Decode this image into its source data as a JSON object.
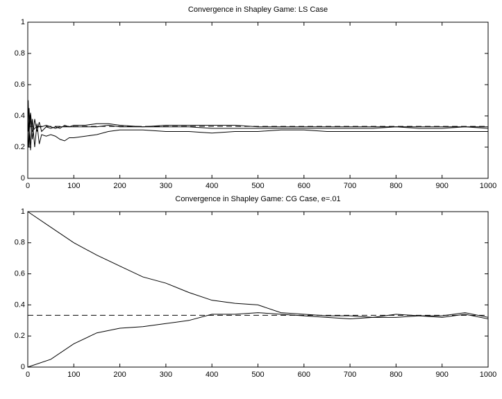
{
  "chart_data": [
    {
      "type": "line",
      "title": "Convergence in Shapley Game: LS Case",
      "x": [
        1,
        3,
        6,
        10,
        15,
        20,
        25,
        30,
        40,
        50,
        60,
        70,
        80,
        90,
        100,
        125,
        150,
        175,
        200,
        250,
        300,
        350,
        400,
        450,
        500,
        550,
        600,
        650,
        700,
        750,
        800,
        850,
        900,
        950,
        1000
      ],
      "series": [
        {
          "color": "#000000",
          "values": [
            0.5,
            0.2,
            0.4,
            0.25,
            0.38,
            0.3,
            0.36,
            0.3,
            0.33,
            0.32,
            0.33,
            0.32,
            0.34,
            0.33,
            0.34,
            0.34,
            0.35,
            0.35,
            0.34,
            0.33,
            0.34,
            0.34,
            0.34,
            0.34,
            0.33,
            0.33,
            0.33,
            0.33,
            0.33,
            0.33,
            0.33,
            0.33,
            0.33,
            0.33,
            0.33
          ]
        },
        {
          "color": "#000000",
          "values": [
            0.3,
            0.45,
            0.18,
            0.38,
            0.2,
            0.35,
            0.22,
            0.28,
            0.27,
            0.28,
            0.27,
            0.25,
            0.24,
            0.26,
            0.26,
            0.27,
            0.28,
            0.3,
            0.31,
            0.31,
            0.3,
            0.3,
            0.29,
            0.3,
            0.3,
            0.31,
            0.31,
            0.3,
            0.3,
            0.3,
            0.3,
            0.3,
            0.3,
            0.3,
            0.3
          ]
        },
        {
          "color": "#000000",
          "values": [
            0.2,
            0.35,
            0.42,
            0.3,
            0.32,
            0.33,
            0.33,
            0.33,
            0.34,
            0.33,
            0.32,
            0.33,
            0.33,
            0.33,
            0.33,
            0.33,
            0.33,
            0.34,
            0.33,
            0.33,
            0.33,
            0.33,
            0.32,
            0.32,
            0.32,
            0.32,
            0.32,
            0.32,
            0.32,
            0.32,
            0.33,
            0.32,
            0.32,
            0.33,
            0.32
          ]
        }
      ],
      "hline": {
        "value": 0.333,
        "color": "#000000",
        "dashed": true
      },
      "xlim": [
        0,
        1000
      ],
      "xticks": [
        0,
        100,
        200,
        300,
        400,
        500,
        600,
        700,
        800,
        900,
        1000
      ],
      "ylim": [
        0,
        1
      ],
      "yticks": [
        0,
        0.2,
        0.4,
        0.6,
        0.8,
        1
      ]
    },
    {
      "type": "line",
      "title": "Convergence in Shapley Game: CG Case, e=.01",
      "x": [
        0,
        50,
        100,
        150,
        200,
        250,
        300,
        350,
        400,
        450,
        500,
        550,
        600,
        650,
        700,
        750,
        800,
        850,
        900,
        950,
        1000
      ],
      "series": [
        {
          "color": "#000000",
          "values": [
            1,
            0.9,
            0.8,
            0.72,
            0.65,
            0.58,
            0.54,
            0.48,
            0.43,
            0.41,
            0.4,
            0.35,
            0.34,
            0.33,
            0.33,
            0.32,
            0.32,
            0.33,
            0.33,
            0.35,
            0.32
          ]
        },
        {
          "color": "#000000",
          "values": [
            0,
            0.05,
            0.15,
            0.22,
            0.25,
            0.26,
            0.28,
            0.3,
            0.34,
            0.34,
            0.35,
            0.34,
            0.33,
            0.32,
            0.31,
            0.32,
            0.34,
            0.33,
            0.32,
            0.34,
            0.31
          ]
        }
      ],
      "hline": {
        "value": 0.333,
        "color": "#000000",
        "dashed": true
      },
      "xlim": [
        0,
        1000
      ],
      "xticks": [
        0,
        100,
        200,
        300,
        400,
        500,
        600,
        700,
        800,
        900,
        1000
      ],
      "ylim": [
        0,
        1
      ],
      "yticks": [
        0,
        0.2,
        0.4,
        0.6,
        0.8,
        1
      ]
    }
  ]
}
